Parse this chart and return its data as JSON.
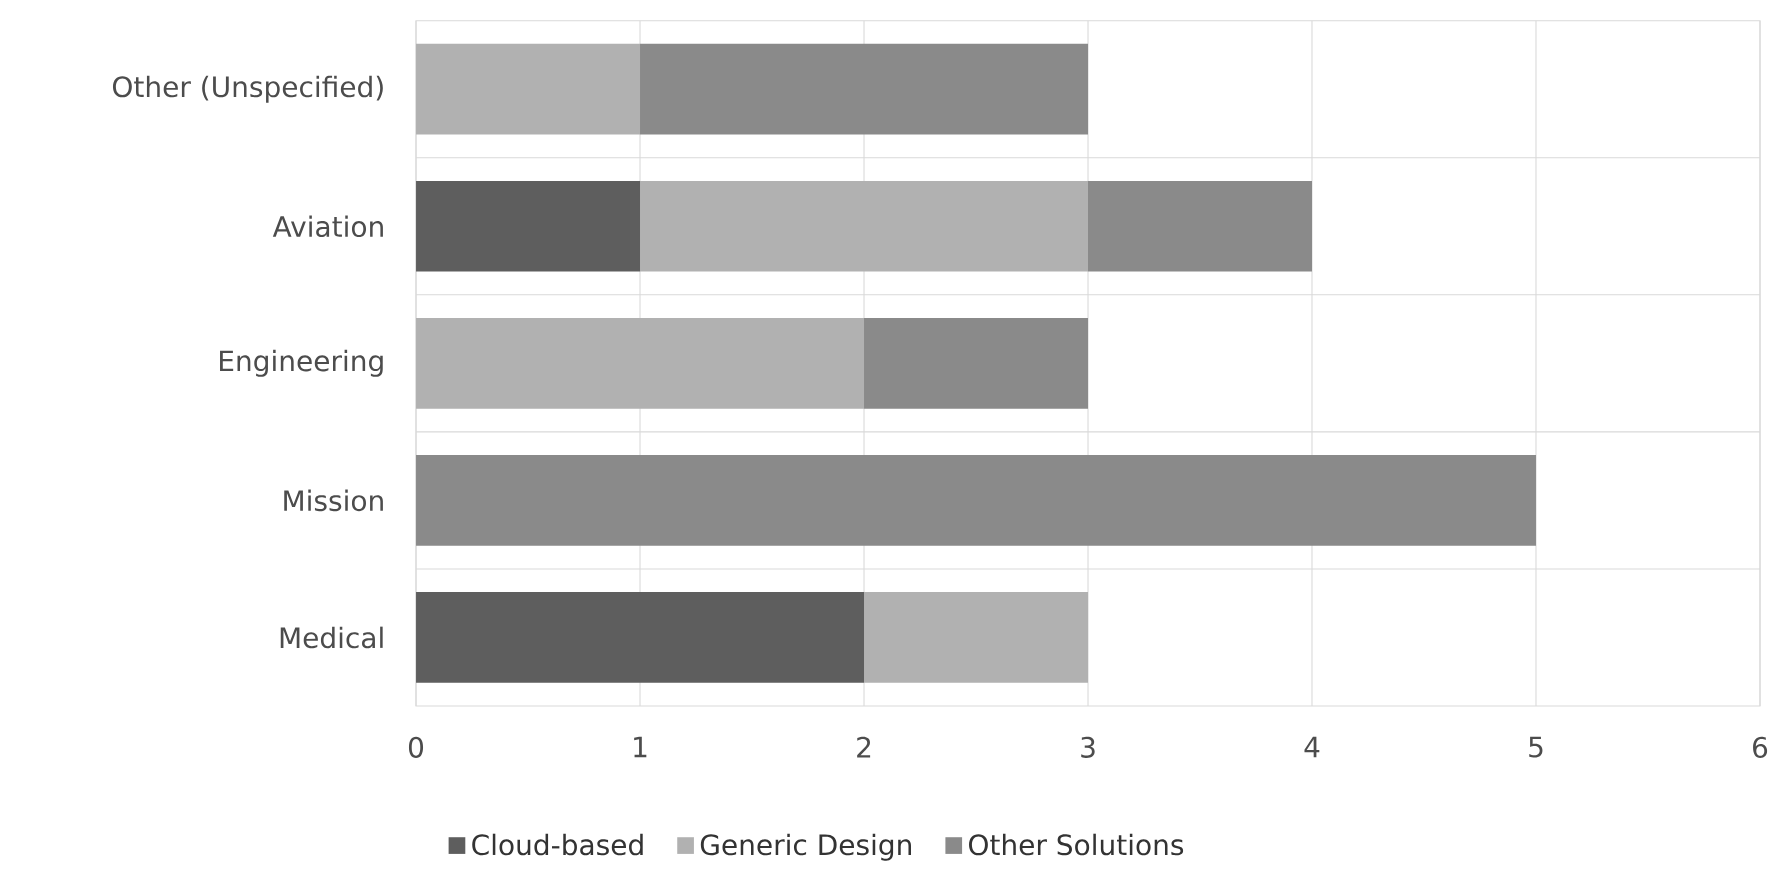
{
  "chart_data": {
    "type": "bar",
    "orientation": "horizontal",
    "stacked": true,
    "categories": [
      "Other (Unspecified)",
      "Aviation",
      "Engineering",
      "Mission",
      "Medical"
    ],
    "series": [
      {
        "name": "Cloud-based",
        "color": "#5e5e5e",
        "values": [
          0,
          1,
          0,
          0,
          2
        ]
      },
      {
        "name": "Generic Design",
        "color": "#b1b1b1",
        "values": [
          1,
          2,
          2,
          0,
          1
        ]
      },
      {
        "name": "Other Solutions",
        "color": "#8a8a8a",
        "values": [
          2,
          1,
          1,
          5,
          0
        ]
      }
    ],
    "xlim": [
      0,
      6
    ],
    "xticks": [
      0,
      1,
      2,
      3,
      4,
      5,
      6
    ],
    "grid": "x",
    "legend": "bottom"
  }
}
